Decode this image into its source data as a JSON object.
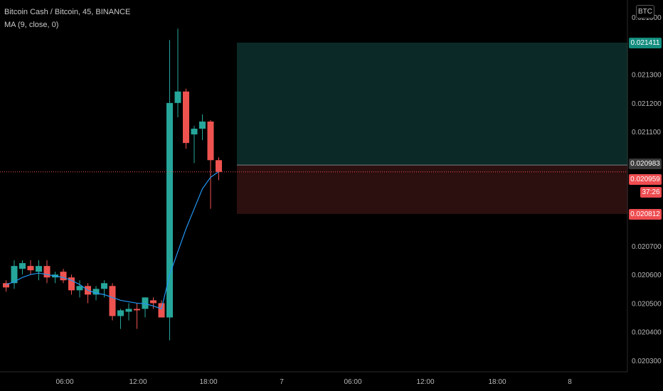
{
  "header": {
    "symbol_line": "Bitcoin Cash / Bitcoin, 45, BINANCE",
    "ma_line": "MA (9, close, 0)"
  },
  "currency_button": "BTC",
  "price_tags": {
    "take_profit": "0.021411",
    "current": "0.020983",
    "last_price": "0.020959",
    "countdown": "37:26",
    "stop_loss": "0.020812"
  },
  "colors": {
    "up": "#26a69a",
    "down": "#ef5350",
    "ma": "#2196f3",
    "profit_zone": "#0b2a27",
    "loss_zone": "#2c0f0f",
    "last_price_line": "#ef5350"
  },
  "chart_data": {
    "type": "candlestick",
    "interval_minutes": 45,
    "y_axis_ticks": [
      "0.021500",
      "0.021300",
      "0.021200",
      "0.021100",
      "0.020700",
      "0.020600",
      "0.020500",
      "0.020400",
      "0.020300"
    ],
    "x_axis_ticks": [
      "06:00",
      "12:00",
      "18:00",
      "7",
      "06:00",
      "12:00",
      "18:00",
      "8"
    ],
    "ylim": [
      0.02026,
      0.02156
    ],
    "candles": [
      {
        "o": 0.02057,
        "h": 0.02058,
        "l": 0.02054,
        "c": 0.020555
      },
      {
        "o": 0.02057,
        "h": 0.02065,
        "l": 0.02055,
        "c": 0.02063
      },
      {
        "o": 0.02062,
        "h": 0.02065,
        "l": 0.0206,
        "c": 0.02064
      },
      {
        "o": 0.02063,
        "h": 0.02065,
        "l": 0.0206,
        "c": 0.020615
      },
      {
        "o": 0.02061,
        "h": 0.02065,
        "l": 0.02058,
        "c": 0.02063
      },
      {
        "o": 0.02063,
        "h": 0.02065,
        "l": 0.02057,
        "c": 0.02059
      },
      {
        "o": 0.02059,
        "h": 0.02061,
        "l": 0.02057,
        "c": 0.0206
      },
      {
        "o": 0.02061,
        "h": 0.02062,
        "l": 0.02057,
        "c": 0.02058
      },
      {
        "o": 0.02059,
        "h": 0.0206,
        "l": 0.02053,
        "c": 0.020545
      },
      {
        "o": 0.020545,
        "h": 0.02058,
        "l": 0.02052,
        "c": 0.02056
      },
      {
        "o": 0.02056,
        "h": 0.02057,
        "l": 0.0205,
        "c": 0.02053
      },
      {
        "o": 0.02053,
        "h": 0.02056,
        "l": 0.02051,
        "c": 0.02055
      },
      {
        "o": 0.02055,
        "h": 0.02058,
        "l": 0.02052,
        "c": 0.02057
      },
      {
        "o": 0.02056,
        "h": 0.02057,
        "l": 0.02044,
        "c": 0.020455
      },
      {
        "o": 0.020455,
        "h": 0.02048,
        "l": 0.02041,
        "c": 0.020475
      },
      {
        "o": 0.02047,
        "h": 0.0205,
        "l": 0.02044,
        "c": 0.02048
      },
      {
        "o": 0.02048,
        "h": 0.0205,
        "l": 0.02041,
        "c": 0.020475
      },
      {
        "o": 0.02048,
        "h": 0.02052,
        "l": 0.02045,
        "c": 0.02052
      },
      {
        "o": 0.02051,
        "h": 0.02052,
        "l": 0.02048,
        "c": 0.0205
      },
      {
        "o": 0.0205,
        "h": 0.02051,
        "l": 0.02045,
        "c": 0.02045
      },
      {
        "o": 0.02045,
        "h": 0.02142,
        "l": 0.02037,
        "c": 0.0212
      },
      {
        "o": 0.0212,
        "h": 0.02146,
        "l": 0.02115,
        "c": 0.02124
      },
      {
        "o": 0.02124,
        "h": 0.02125,
        "l": 0.02104,
        "c": 0.02106
      },
      {
        "o": 0.02109,
        "h": 0.02112,
        "l": 0.02099,
        "c": 0.02111
      },
      {
        "o": 0.02111,
        "h": 0.02116,
        "l": 0.02107,
        "c": 0.021135
      },
      {
        "o": 0.021135,
        "h": 0.02114,
        "l": 0.02083,
        "c": 0.021
      },
      {
        "o": 0.021,
        "h": 0.02101,
        "l": 0.02093,
        "c": 0.020959
      }
    ],
    "ma": [
      0.020565,
      0.020575,
      0.02059,
      0.0206,
      0.020605,
      0.0206,
      0.020595,
      0.02059,
      0.02058,
      0.020565,
      0.020545,
      0.020535,
      0.02053,
      0.02052,
      0.02051,
      0.020505,
      0.0205,
      0.020498,
      0.02049,
      0.02048,
      0.0206,
      0.02068,
      0.02076,
      0.02083,
      0.0209,
      0.02094,
      0.02096
    ],
    "position": {
      "type": "long",
      "entry": 0.020983,
      "take_profit": 0.021411,
      "stop_loss": 0.020812
    },
    "last_price": 0.020959
  }
}
